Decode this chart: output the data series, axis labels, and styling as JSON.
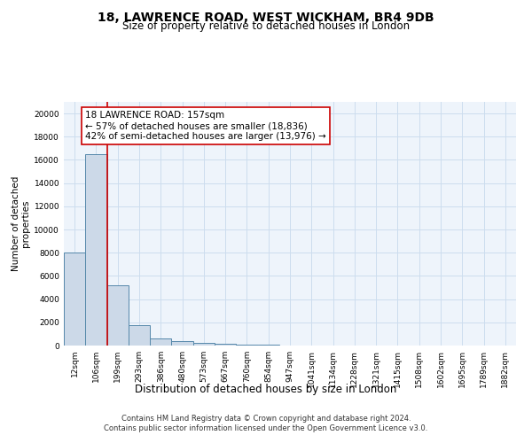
{
  "title": "18, LAWRENCE ROAD, WEST WICKHAM, BR4 9DB",
  "subtitle": "Size of property relative to detached houses in London",
  "xlabel": "Distribution of detached houses by size in London",
  "ylabel": "Number of detached\nproperties",
  "categories": [
    "12sqm",
    "106sqm",
    "199sqm",
    "293sqm",
    "386sqm",
    "480sqm",
    "573sqm",
    "667sqm",
    "760sqm",
    "854sqm",
    "947sqm",
    "1041sqm",
    "1134sqm",
    "1228sqm",
    "1321sqm",
    "1415sqm",
    "1508sqm",
    "1602sqm",
    "1695sqm",
    "1789sqm",
    "1882sqm"
  ],
  "values": [
    8050,
    16500,
    5200,
    1750,
    600,
    350,
    200,
    150,
    100,
    80,
    0,
    0,
    0,
    0,
    0,
    0,
    0,
    0,
    0,
    0,
    0
  ],
  "bar_color": "#ccd9e8",
  "bar_edge_color": "#5588aa",
  "grid_color": "#ccddee",
  "bg_color": "#eef4fb",
  "vline_x": 1.5,
  "vline_color": "#cc0000",
  "annotation_text": "18 LAWRENCE ROAD: 157sqm\n← 57% of detached houses are smaller (18,836)\n42% of semi-detached houses are larger (13,976) →",
  "annotation_box_color": "#ffffff",
  "annotation_box_edge": "#cc0000",
  "ylim": [
    0,
    21000
  ],
  "yticks": [
    0,
    2000,
    4000,
    6000,
    8000,
    10000,
    12000,
    14000,
    16000,
    18000,
    20000
  ],
  "footer": "Contains HM Land Registry data © Crown copyright and database right 2024.\nContains public sector information licensed under the Open Government Licence v3.0.",
  "title_fontsize": 10,
  "subtitle_fontsize": 8.5,
  "xlabel_fontsize": 8.5,
  "ylabel_fontsize": 7.5,
  "tick_fontsize": 6.5,
  "annotation_fontsize": 7.5,
  "footer_fontsize": 6.0
}
